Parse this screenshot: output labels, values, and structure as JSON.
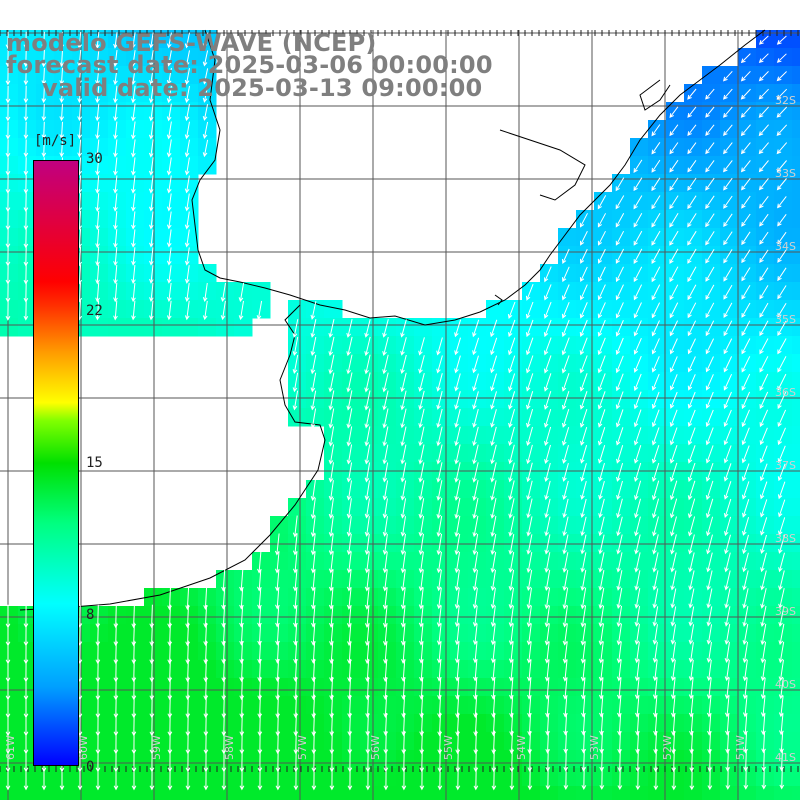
{
  "title": {
    "line1": "modelo GEFS-WAVE (NCEP)",
    "line2": "forecast date: 2025-03-06 00:00:00",
    "line3": "valid date: 2025-03-13 09:00:00"
  },
  "colorbar": {
    "unit": "[m/s]",
    "ticks": [
      "30",
      "22",
      "15",
      "8",
      "0"
    ],
    "min": 0,
    "max": 30
  },
  "lat_labels": [
    "32S",
    "33S",
    "34S",
    "35S",
    "36S",
    "37S",
    "38S",
    "39S",
    "40S",
    "41S"
  ],
  "lon_labels": [
    "61W",
    "60W",
    "59W",
    "58W",
    "57W",
    "56W",
    "55W",
    "54W",
    "53W",
    "52W",
    "51W"
  ],
  "colors": {
    "title": "#7f7f7f",
    "land": "#ffffff",
    "arrows": "#ffffff",
    "grid": "#555555",
    "coast": "#000000"
  },
  "wind_field": {
    "regions": [
      {
        "area": "south-west shelf",
        "speed_ms": 11,
        "direction": "from north"
      },
      {
        "area": "central",
        "speed_ms": 8.5,
        "direction": "from north"
      },
      {
        "area": "north-east offshore",
        "speed_ms": 4,
        "direction": "from north-east"
      }
    ]
  }
}
